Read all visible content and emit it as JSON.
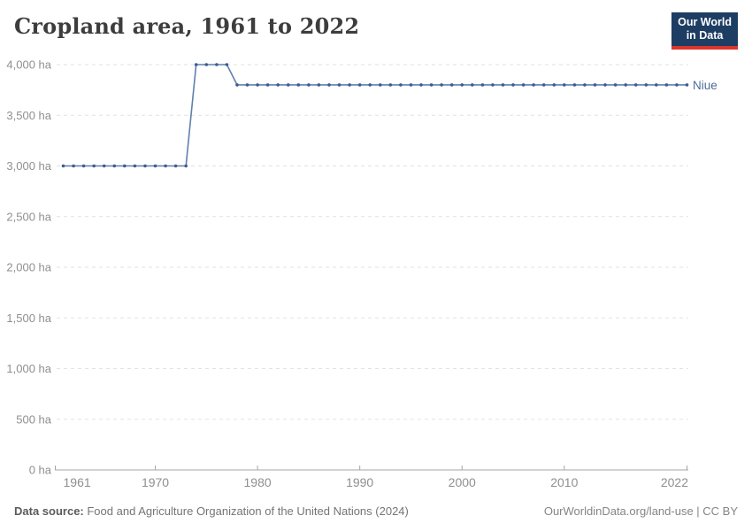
{
  "header": {
    "title": "Cropland area, 1961 to 2022",
    "logo": {
      "line1": "Our World",
      "line2": "in Data",
      "bg_color": "#1d3d63",
      "accent_color": "#dc352c"
    }
  },
  "entity_label": {
    "text": "Niue",
    "color": "#4d6a9b"
  },
  "chart_data": {
    "type": "line",
    "title": "Cropland area, 1961 to 2022",
    "xlabel": "",
    "ylabel": "",
    "unit": "ha",
    "xlim": [
      1961,
      2022
    ],
    "ylim": [
      0,
      4000
    ],
    "grid": "horizontal-dashed",
    "legend_position": "right-of-line-end",
    "line_color": "#6080ad",
    "marker_color": "#3d5c92",
    "grid_color": "#e2e2e2",
    "axis_color": "#a5a5a5",
    "tick_label_color": "#8f8f8f",
    "x_ticks": [
      {
        "value": 1961,
        "label": "1961"
      },
      {
        "value": 1970,
        "label": "1970"
      },
      {
        "value": 1980,
        "label": "1980"
      },
      {
        "value": 1990,
        "label": "1990"
      },
      {
        "value": 2000,
        "label": "2000"
      },
      {
        "value": 2010,
        "label": "2010"
      },
      {
        "value": 2022,
        "label": "2022"
      }
    ],
    "y_ticks": [
      {
        "value": 0,
        "label": "0 ha"
      },
      {
        "value": 500,
        "label": "500 ha"
      },
      {
        "value": 1000,
        "label": "1,000 ha"
      },
      {
        "value": 1500,
        "label": "1,500 ha"
      },
      {
        "value": 2000,
        "label": "2,000 ha"
      },
      {
        "value": 2500,
        "label": "2,500 ha"
      },
      {
        "value": 3000,
        "label": "3,000 ha"
      },
      {
        "value": 3500,
        "label": "3,500 ha"
      },
      {
        "value": 4000,
        "label": "4,000 ha"
      }
    ],
    "series": [
      {
        "name": "Niue",
        "x": [
          1961,
          1962,
          1963,
          1964,
          1965,
          1966,
          1967,
          1968,
          1969,
          1970,
          1971,
          1972,
          1973,
          1974,
          1975,
          1976,
          1977,
          1978,
          1979,
          1980,
          1981,
          1982,
          1983,
          1984,
          1985,
          1986,
          1987,
          1988,
          1989,
          1990,
          1991,
          1992,
          1993,
          1994,
          1995,
          1996,
          1997,
          1998,
          1999,
          2000,
          2001,
          2002,
          2003,
          2004,
          2005,
          2006,
          2007,
          2008,
          2009,
          2010,
          2011,
          2012,
          2013,
          2014,
          2015,
          2016,
          2017,
          2018,
          2019,
          2020,
          2021,
          2022
        ],
        "values": [
          3000,
          3000,
          3000,
          3000,
          3000,
          3000,
          3000,
          3000,
          3000,
          3000,
          3000,
          3000,
          3000,
          4000,
          4000,
          4000,
          4000,
          3800,
          3800,
          3800,
          3800,
          3800,
          3800,
          3800,
          3800,
          3800,
          3800,
          3800,
          3800,
          3800,
          3800,
          3800,
          3800,
          3800,
          3800,
          3800,
          3800,
          3800,
          3800,
          3800,
          3800,
          3800,
          3800,
          3800,
          3800,
          3800,
          3800,
          3800,
          3800,
          3800,
          3800,
          3800,
          3800,
          3800,
          3800,
          3800,
          3800,
          3800,
          3800,
          3800,
          3800,
          3800
        ]
      }
    ]
  },
  "footer": {
    "source_label": "Data source:",
    "source_text": " Food and Agriculture Organization of the United Nations (2024)",
    "credit": "OurWorldinData.org/land-use | CC BY"
  }
}
